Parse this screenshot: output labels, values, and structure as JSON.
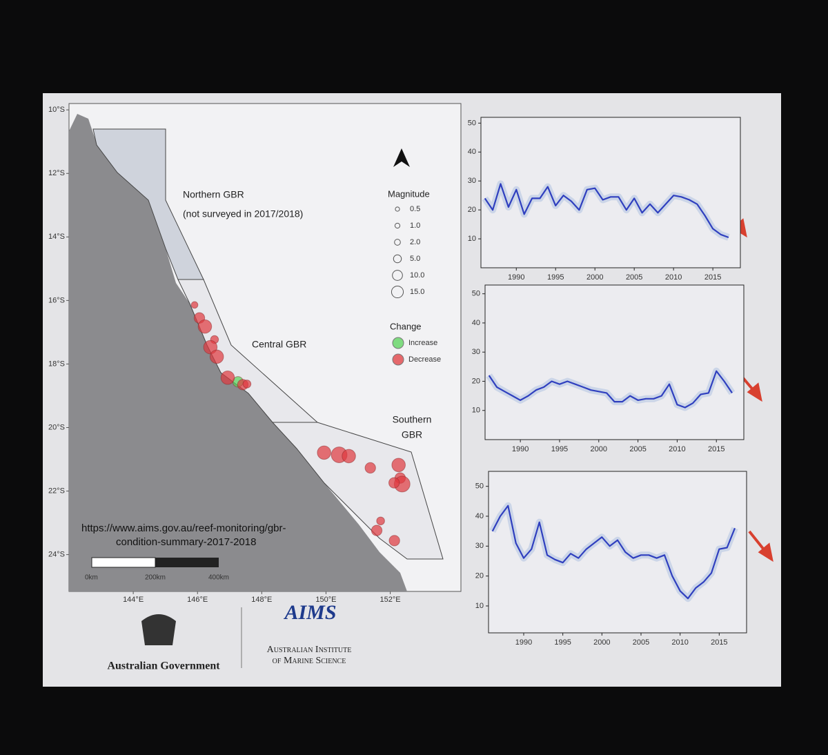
{
  "chart_data": [
    {
      "type": "map",
      "xlim": [
        142.0,
        154.2
      ],
      "ylim": [
        -25.16,
        -9.8
      ],
      "xticks": [
        {
          "value": 144,
          "label": "144°E"
        },
        {
          "value": 146,
          "label": "146°E"
        },
        {
          "value": 148,
          "label": "148°E"
        },
        {
          "value": 150,
          "label": "150°E"
        },
        {
          "value": 152,
          "label": "152°E"
        }
      ],
      "yticks": [
        {
          "value": -10,
          "label": "10°S"
        },
        {
          "value": -12,
          "label": "12°S"
        },
        {
          "value": -14,
          "label": "14°S"
        },
        {
          "value": -16,
          "label": "16°S"
        },
        {
          "value": -18,
          "label": "18°S"
        },
        {
          "value": -20,
          "label": "20°S"
        },
        {
          "value": -22,
          "label": "22°S"
        },
        {
          "value": -24,
          "label": "24°S"
        }
      ],
      "annotations": [
        "Northern GBR",
        "(not surveyed in 2017/2018)",
        "Central GBR",
        "Southern",
        "GBR"
      ],
      "size_legend": {
        "title": "Magnitude",
        "values": [
          0.5,
          {
            "value": 1,
            "label": "1.0"
          },
          {
            "value": 2,
            "label": "2.0"
          },
          {
            "value": 5,
            "label": "5.0"
          },
          {
            "value": 10,
            "label": "10.0"
          },
          {
            "value": 15,
            "label": "15.0"
          }
        ]
      },
      "color_legend_title": "Change",
      "series": [
        {
          "name": "Increase",
          "color": "#58d35a",
          "x": [
            147.26
          ],
          "y": [
            -18.56
          ],
          "sizes": [
            5
          ]
        },
        {
          "name": "Decrease",
          "color": "#e0393e",
          "x": [
            145.91,
            146.06,
            146.23,
            146.53,
            146.4,
            146.6,
            146.94,
            147.41,
            147.54,
            149.94,
            150.41,
            150.71,
            151.38,
            152.26,
            152.31,
            152.37,
            152.12,
            151.7,
            151.58,
            152.13
          ],
          "y": [
            -16.14,
            -16.55,
            -16.82,
            -17.23,
            -17.47,
            -17.77,
            -18.43,
            -18.65,
            -18.63,
            -20.79,
            -20.86,
            -20.9,
            -21.27,
            -21.18,
            -21.59,
            -21.78,
            -21.74,
            -22.94,
            -23.24,
            -23.56
          ],
          "sizes": [
            1,
            5,
            10,
            2,
            10,
            10,
            10,
            5,
            2,
            10,
            15,
            10,
            5,
            10,
            5,
            15,
            5,
            2,
            5,
            5
          ]
        }
      ],
      "scale_labels": [
        "0km",
        "200km",
        "400km"
      ],
      "source": [
        "https://www.aims.gov.au/reef-monitoring/gbr-",
        "condition-summary-2017-2018"
      ]
    },
    {
      "type": "line",
      "color": "#2f3fbf",
      "x": [
        1986,
        1987,
        1988,
        1989,
        1990,
        1991,
        1992,
        1993,
        1994,
        1995,
        1996,
        1997,
        1998,
        1999,
        2000,
        2001,
        2002,
        2003,
        2004,
        2005,
        2006,
        2007,
        2008,
        2009,
        2010,
        2011,
        2012,
        2013,
        2014,
        2015,
        2016,
        2017
      ],
      "values": [
        24,
        20,
        29,
        21,
        27,
        18.5,
        24,
        24,
        28,
        21.5,
        25,
        23,
        20,
        27,
        27.5,
        23.5,
        24.5,
        24.5,
        20,
        24,
        19,
        22,
        19,
        22,
        25,
        24.5,
        23.5,
        22,
        18,
        13.5,
        11.5,
        10.5
      ],
      "xlim": [
        1985.5,
        2018.5
      ],
      "xticks": [
        1990,
        1995,
        2000,
        2005,
        2010,
        2015
      ],
      "ylim": [
        0,
        52
      ],
      "yticks": [
        10,
        20,
        30,
        40,
        50
      ]
    },
    {
      "type": "line",
      "color": "#2f3fbf",
      "x": [
        1986,
        1987,
        1988,
        1989,
        1990,
        1991,
        1992,
        1993,
        1994,
        1995,
        1996,
        1997,
        1998,
        1999,
        2000,
        2001,
        2002,
        2003,
        2004,
        2005,
        2006,
        2007,
        2008,
        2009,
        2010,
        2011,
        2012,
        2013,
        2014,
        2015,
        2016,
        2017
      ],
      "values": [
        22,
        18,
        16.5,
        15,
        13.5,
        15,
        17,
        18,
        20,
        19,
        20,
        19,
        18,
        17,
        16.5,
        16,
        13,
        13,
        15,
        13.5,
        14,
        14,
        15,
        19,
        12,
        11,
        12.5,
        15.5,
        16,
        23.5,
        20,
        16
      ],
      "xlim": [
        1985.5,
        2018.5
      ],
      "xticks": [
        1990,
        1995,
        2000,
        2005,
        2010,
        2015
      ],
      "ylim": [
        0,
        53
      ],
      "yticks": [
        10,
        20,
        30,
        40,
        50
      ]
    },
    {
      "type": "line",
      "color": "#2f3fbf",
      "x": [
        1986,
        1987,
        1988,
        1989,
        1990,
        1991,
        1992,
        1993,
        1994,
        1995,
        1996,
        1997,
        1998,
        1999,
        2000,
        2001,
        2002,
        2003,
        2004,
        2005,
        2006,
        2007,
        2008,
        2009,
        2010,
        2011,
        2012,
        2013,
        2014,
        2015,
        2016,
        2017
      ],
      "values": [
        35,
        40,
        43.5,
        31,
        26,
        29,
        38,
        27,
        25.5,
        24.5,
        27.5,
        26,
        29,
        31,
        33,
        30,
        32,
        28,
        26,
        27,
        27,
        26,
        27,
        20,
        15,
        12.5,
        16,
        18,
        21,
        29,
        29.5,
        36
      ],
      "xlim": [
        1985.5,
        2018.5
      ],
      "xticks": [
        1990,
        1995,
        2000,
        2005,
        2010,
        2015
      ],
      "ylim": [
        1,
        55
      ],
      "yticks": [
        10,
        20,
        30,
        40,
        50
      ]
    }
  ],
  "footer": {
    "government": "Australian Government",
    "logo": "AIMS",
    "institute": [
      "Australian Institute",
      "of Marine Science"
    ]
  }
}
